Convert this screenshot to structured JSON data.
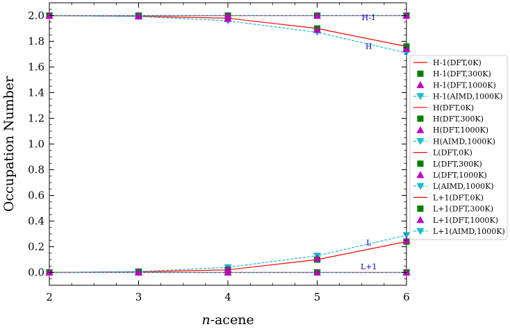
{
  "chart_data": {
    "type": "line",
    "title": "",
    "xlabel_italic": "n",
    "xlabel_rest": "-acene",
    "ylabel": "Occupation Number",
    "x": [
      2,
      3,
      4,
      5,
      6
    ],
    "x_ticks": [
      "2",
      "3",
      "4",
      "5",
      "6"
    ],
    "y_ticks": [
      "0.0",
      "0.2",
      "0.4",
      "0.6",
      "0.8",
      "1.0",
      "1.2",
      "1.4",
      "1.6",
      "1.8",
      "2.0"
    ],
    "xlim": [
      2,
      6
    ],
    "ylim": [
      -0.1,
      2.1
    ],
    "grid": false,
    "legend_position": "right, outside plot",
    "colors": {
      "dft_0k": "#ff0000",
      "dft_300k": "#008000",
      "dft_1000k": "#bf00bf",
      "aimd_1000k": "#17becf",
      "annotation": "#0000cc"
    },
    "series": [
      {
        "name": "H-1(DFT,0K)",
        "style": "line",
        "color": "#ff0000",
        "values": [
          2.0,
          2.0,
          2.0,
          2.0,
          2.0
        ]
      },
      {
        "name": "H-1(DFT,300K)",
        "style": "square",
        "color": "#008000",
        "values": [
          2.0,
          2.0,
          2.0,
          2.0,
          2.0
        ]
      },
      {
        "name": "H-1(DFT,1000K)",
        "style": "triangle-up",
        "color": "#bf00bf",
        "values": [
          2.0,
          2.0,
          2.0,
          2.0,
          2.0
        ]
      },
      {
        "name": "H-1(AIMD,1000K)",
        "style": "dashed-triangle-down",
        "color": "#17becf",
        "values": [
          2.0,
          2.0,
          2.0,
          2.0,
          2.0
        ]
      },
      {
        "name": "H(DFT,0K)",
        "style": "line",
        "color": "#ff0000",
        "values": [
          2.0,
          1.995,
          1.98,
          1.9,
          1.76
        ]
      },
      {
        "name": "H(DFT,300K)",
        "style": "square",
        "color": "#008000",
        "values": [
          2.0,
          1.995,
          1.98,
          1.9,
          1.76
        ]
      },
      {
        "name": "H(DFT,1000K)",
        "style": "triangle-up",
        "color": "#bf00bf",
        "values": [
          2.0,
          1.995,
          1.975,
          1.89,
          1.74
        ]
      },
      {
        "name": "H(AIMD,1000K)",
        "style": "dashed-triangle-down",
        "color": "#17becf",
        "values": [
          2.0,
          1.993,
          1.96,
          1.87,
          1.71
        ]
      },
      {
        "name": "L(DFT,0K)",
        "style": "line",
        "color": "#ff0000",
        "values": [
          0.0,
          0.005,
          0.02,
          0.1,
          0.24
        ]
      },
      {
        "name": "L(DFT,300K)",
        "style": "square",
        "color": "#008000",
        "values": [
          0.0,
          0.005,
          0.02,
          0.1,
          0.24
        ]
      },
      {
        "name": "L(DFT,1000K)",
        "style": "triangle-up",
        "color": "#bf00bf",
        "values": [
          0.0,
          0.005,
          0.025,
          0.11,
          0.25
        ]
      },
      {
        "name": "L(AIMD,1000K)",
        "style": "dashed-triangle-down",
        "color": "#17becf",
        "values": [
          0.0,
          0.007,
          0.04,
          0.13,
          0.29
        ]
      },
      {
        "name": "L+1(DFT,0K)",
        "style": "line",
        "color": "#ff0000",
        "values": [
          0.0,
          0.0,
          0.0,
          0.0,
          0.0
        ]
      },
      {
        "name": "L+1(DFT,300K)",
        "style": "square",
        "color": "#008000",
        "values": [
          0.0,
          0.0,
          0.0,
          0.0,
          0.0
        ]
      },
      {
        "name": "L+1(DFT,1000K)",
        "style": "triangle-up",
        "color": "#bf00bf",
        "values": [
          0.0,
          0.0,
          0.0,
          0.0,
          0.0
        ]
      },
      {
        "name": "L+1(AIMD,1000K)",
        "style": "dashed-triangle-down",
        "color": "#17becf",
        "values": [
          0.0,
          0.0,
          0.0,
          0.0,
          0.0
        ]
      }
    ],
    "annotations": [
      {
        "text": "H-1",
        "x": 5.5,
        "y": 1.965
      },
      {
        "text": "H",
        "x": 5.5,
        "y": 1.74
      },
      {
        "text": "L",
        "x": 5.5,
        "y": 0.21
      },
      {
        "text": "L+1",
        "x": 5.5,
        "y": 0.025
      }
    ]
  }
}
